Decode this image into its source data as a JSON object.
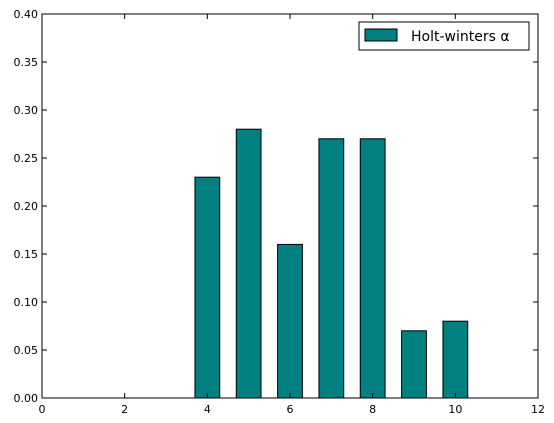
{
  "chart_data": {
    "type": "bar",
    "x": [
      4,
      5,
      6,
      7,
      8,
      9,
      10
    ],
    "series": [
      {
        "name": "Holt-winters α",
        "values": [
          0.23,
          0.28,
          0.16,
          0.27,
          0.27,
          0.07,
          0.08
        ]
      }
    ],
    "bar_width": 0.6,
    "xlim": [
      0,
      12
    ],
    "ylim": [
      0,
      0.4
    ],
    "xticks": [
      "0",
      "2",
      "4",
      "6",
      "8",
      "10",
      "12"
    ],
    "yticks": [
      "0.00",
      "0.05",
      "0.10",
      "0.15",
      "0.20",
      "0.25",
      "0.30",
      "0.35",
      "0.40"
    ],
    "title": "",
    "xlabel": "",
    "ylabel": "",
    "grid": false,
    "legend_position": "top-right",
    "colors": {
      "bar": "#008080",
      "edge": "#000000"
    }
  }
}
